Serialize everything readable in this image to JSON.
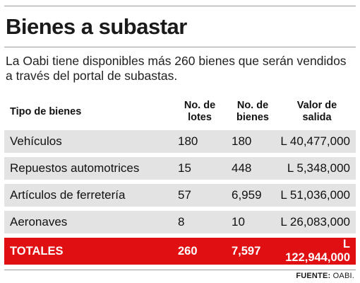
{
  "title": "Bienes a subastar",
  "description": "La Oabi tiene disponibles más 260 bienes que serán vendidos a través del portal de subastas.",
  "chart_data": {
    "type": "table",
    "columns": [
      "Tipo de bienes",
      "No. de lotes",
      "No. de bienes",
      "Valor de salida"
    ],
    "rows": [
      {
        "tipo": "Vehículos",
        "lotes": "180",
        "bienes": "180",
        "valor": "L 40,477,000"
      },
      {
        "tipo": "Repuestos automotrices",
        "lotes": "15",
        "bienes": "448",
        "valor": "L 5,348,000"
      },
      {
        "tipo": "Artículos de ferretería",
        "lotes": "57",
        "bienes": "6,959",
        "valor": "L 51,036,000"
      },
      {
        "tipo": "Aeronaves",
        "lotes": "8",
        "bienes": "10",
        "valor": "L 26,083,000"
      }
    ],
    "totals": {
      "tipo": "TOTALES",
      "lotes": "260",
      "bienes": "7,597",
      "valor": "L 122,944,000"
    },
    "colors": {
      "row_bg": "#e3e3e3",
      "totals_bg": "#e00f12",
      "totals_text": "#ffffff"
    }
  },
  "source": {
    "label": "FUENTE:",
    "value": "OABI."
  }
}
